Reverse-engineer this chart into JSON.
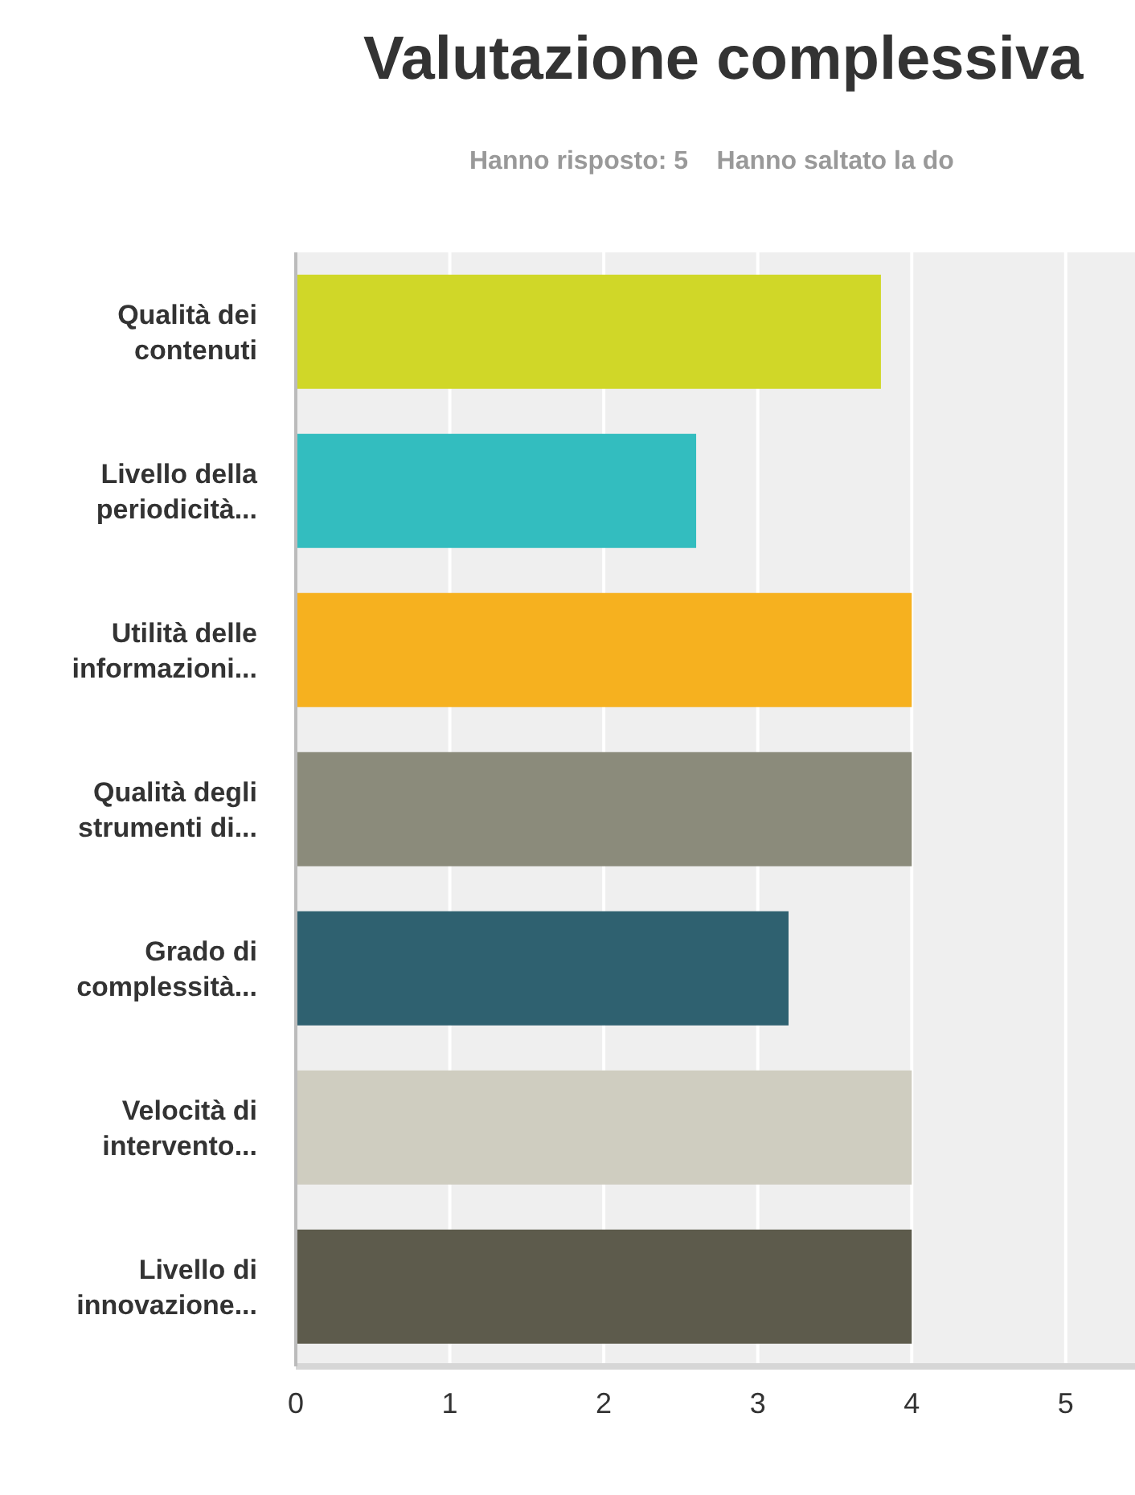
{
  "chart_data": {
    "type": "bar",
    "orientation": "horizontal",
    "title": "Valutazione complessiva",
    "subtitle": "Hanno risposto: 5    Hanno saltato la do",
    "categories": [
      "Qualità dei contenuti",
      "Livello della periodicità...",
      "Utilità delle informazioni...",
      "Qualità degli strumenti di...",
      "Grado di complessità...",
      "Velocità di intervento...",
      "Livello di innovazione..."
    ],
    "values": [
      3.8,
      2.6,
      4,
      4,
      3.2,
      4,
      4
    ],
    "colors": [
      "#d0d728",
      "#33bdbf",
      "#f6b11f",
      "#8b8b7b",
      "#2f6170",
      "#cfcdc0",
      "#5d5b4c"
    ],
    "xlim": [
      0,
      5.45
    ],
    "xticks": [
      0,
      1,
      2,
      3,
      4,
      5
    ],
    "grid": "x",
    "legend": false
  }
}
